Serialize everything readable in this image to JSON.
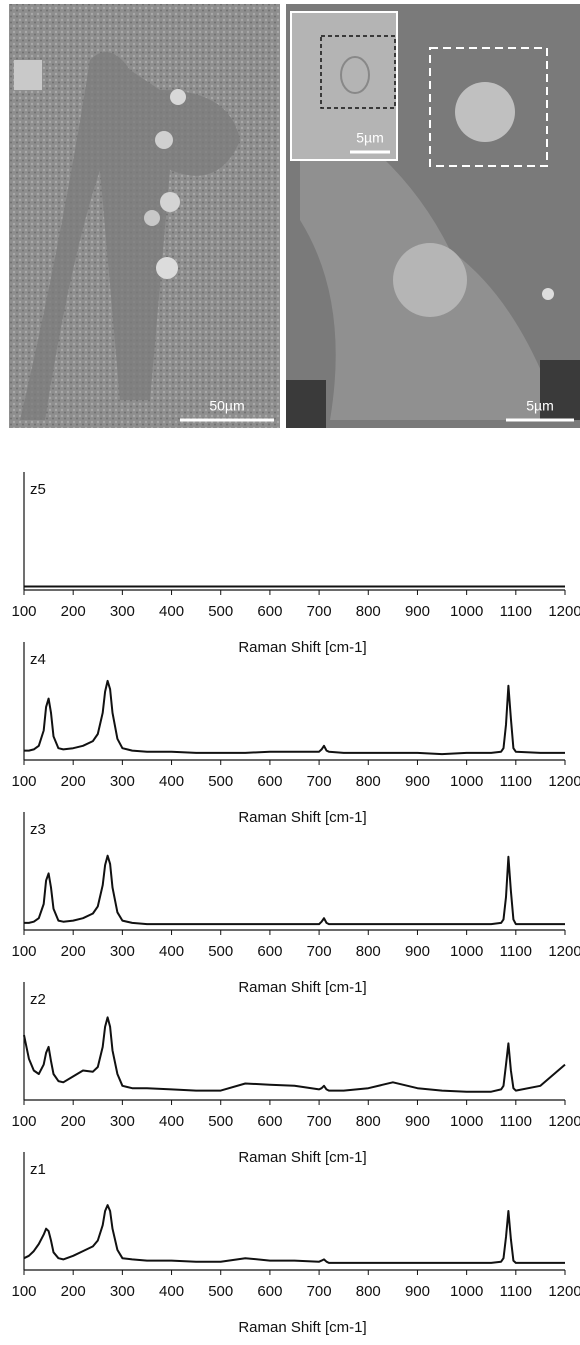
{
  "images": [
    {
      "scale_bar": "50µm"
    },
    {
      "scale_bar": "5µm",
      "inset_scale_bar": "5µm"
    }
  ],
  "chart_data": [
    {
      "type": "line",
      "label": "z5",
      "x_label": "Raman Shift [cm-1]",
      "color": "#111111",
      "xlim": [
        100,
        1200
      ],
      "ylim": [
        0,
        100
      ],
      "xticks": [
        100,
        200,
        300,
        400,
        500,
        600,
        700,
        800,
        900,
        1000,
        1100,
        1200
      ],
      "x": [
        100,
        110,
        120,
        130,
        140,
        145,
        150,
        155,
        160,
        170,
        180,
        200,
        220,
        240,
        250,
        260,
        265,
        270,
        275,
        280,
        290,
        300,
        320,
        350,
        400,
        450,
        500,
        550,
        600,
        650,
        700,
        705,
        710,
        715,
        720,
        750,
        800,
        850,
        900,
        950,
        1000,
        1050,
        1070,
        1075,
        1080,
        1085,
        1090,
        1095,
        1100,
        1150,
        1200
      ],
      "values": [
        3,
        3,
        3,
        3,
        3,
        3,
        3,
        3,
        3,
        3,
        3,
        3,
        3,
        3,
        3,
        3,
        3,
        3,
        3,
        3,
        3,
        3,
        3,
        3,
        3,
        3,
        3,
        3,
        3,
        3,
        3,
        3,
        3,
        3,
        3,
        3,
        3,
        3,
        3,
        3,
        3,
        3,
        3,
        3,
        3,
        3,
        3,
        3,
        3,
        3,
        3
      ]
    },
    {
      "type": "line",
      "label": "z4",
      "x_label": "Raman Shift [cm-1]",
      "color": "#111111",
      "xlim": [
        100,
        1200
      ],
      "ylim": [
        0,
        100
      ],
      "xticks": [
        100,
        200,
        300,
        400,
        500,
        600,
        700,
        800,
        900,
        1000,
        1100,
        1200
      ],
      "x": [
        100,
        110,
        120,
        130,
        140,
        145,
        150,
        155,
        160,
        170,
        180,
        200,
        220,
        240,
        250,
        260,
        265,
        270,
        275,
        280,
        290,
        300,
        320,
        350,
        400,
        450,
        500,
        550,
        600,
        650,
        700,
        705,
        710,
        715,
        720,
        750,
        800,
        850,
        900,
        950,
        1000,
        1050,
        1070,
        1075,
        1080,
        1085,
        1090,
        1095,
        1100,
        1150,
        1200
      ],
      "values": [
        8,
        8,
        9,
        12,
        25,
        45,
        52,
        40,
        20,
        10,
        9,
        10,
        12,
        16,
        22,
        40,
        58,
        67,
        60,
        40,
        18,
        10,
        8,
        7,
        7,
        6,
        6,
        6,
        7,
        7,
        7,
        9,
        12,
        8,
        7,
        6,
        6,
        6,
        6,
        5,
        6,
        6,
        7,
        10,
        30,
        63,
        35,
        10,
        7,
        6,
        6
      ]
    },
    {
      "type": "line",
      "label": "z3",
      "x_label": "Raman Shift [cm-1]",
      "color": "#111111",
      "xlim": [
        100,
        1200
      ],
      "ylim": [
        0,
        100
      ],
      "xticks": [
        100,
        200,
        300,
        400,
        500,
        600,
        700,
        800,
        900,
        1000,
        1100,
        1200
      ],
      "x": [
        100,
        110,
        120,
        130,
        140,
        145,
        150,
        155,
        160,
        170,
        180,
        200,
        220,
        240,
        250,
        260,
        265,
        270,
        275,
        280,
        290,
        300,
        320,
        350,
        400,
        450,
        500,
        550,
        600,
        650,
        700,
        705,
        710,
        715,
        720,
        750,
        800,
        850,
        900,
        950,
        1000,
        1050,
        1070,
        1075,
        1080,
        1085,
        1090,
        1095,
        1100,
        1150,
        1200
      ],
      "values": [
        6,
        6,
        7,
        10,
        22,
        42,
        48,
        36,
        18,
        8,
        7,
        8,
        10,
        14,
        20,
        38,
        55,
        63,
        56,
        36,
        15,
        8,
        6,
        5,
        5,
        5,
        5,
        5,
        5,
        5,
        5,
        7,
        10,
        6,
        5,
        5,
        5,
        5,
        5,
        5,
        5,
        5,
        6,
        9,
        28,
        62,
        33,
        9,
        5,
        5,
        5
      ]
    },
    {
      "type": "line",
      "label": "z2",
      "x_label": "Raman Shift [cm-1]",
      "color": "#111111",
      "xlim": [
        100,
        1200
      ],
      "ylim": [
        0,
        100
      ],
      "xticks": [
        100,
        200,
        300,
        400,
        500,
        600,
        700,
        800,
        900,
        1000,
        1100,
        1200
      ],
      "x": [
        100,
        110,
        120,
        130,
        140,
        145,
        150,
        155,
        160,
        170,
        180,
        200,
        220,
        240,
        250,
        260,
        265,
        270,
        275,
        280,
        290,
        300,
        320,
        350,
        400,
        450,
        500,
        550,
        600,
        650,
        700,
        705,
        710,
        715,
        720,
        750,
        800,
        850,
        900,
        950,
        1000,
        1050,
        1070,
        1075,
        1080,
        1085,
        1090,
        1095,
        1100,
        1150,
        1200
      ],
      "values": [
        55,
        35,
        25,
        22,
        30,
        40,
        45,
        33,
        22,
        16,
        15,
        20,
        25,
        24,
        28,
        45,
        62,
        70,
        62,
        42,
        22,
        12,
        10,
        10,
        9,
        8,
        8,
        14,
        13,
        12,
        9,
        10,
        12,
        9,
        8,
        8,
        10,
        15,
        10,
        8,
        7,
        7,
        9,
        12,
        30,
        48,
        25,
        10,
        8,
        12,
        30
      ]
    },
    {
      "type": "line",
      "label": "z1",
      "x_label": "Raman Shift [cm-1]",
      "color": "#111111",
      "xlim": [
        100,
        1200
      ],
      "ylim": [
        0,
        100
      ],
      "xticks": [
        100,
        200,
        300,
        400,
        500,
        600,
        700,
        800,
        900,
        1000,
        1100,
        1200
      ],
      "x": [
        100,
        110,
        120,
        130,
        140,
        145,
        150,
        155,
        160,
        170,
        180,
        200,
        220,
        240,
        250,
        260,
        265,
        270,
        275,
        280,
        290,
        300,
        320,
        350,
        400,
        450,
        500,
        550,
        600,
        650,
        700,
        705,
        710,
        715,
        720,
        750,
        800,
        850,
        900,
        950,
        1000,
        1050,
        1070,
        1075,
        1080,
        1085,
        1090,
        1095,
        1100,
        1150,
        1200
      ],
      "values": [
        10,
        12,
        16,
        22,
        30,
        35,
        33,
        25,
        15,
        10,
        9,
        12,
        16,
        20,
        25,
        38,
        50,
        55,
        50,
        35,
        17,
        10,
        9,
        8,
        8,
        7,
        7,
        10,
        8,
        8,
        7,
        8,
        9,
        7,
        6,
        6,
        6,
        6,
        6,
        6,
        6,
        6,
        7,
        10,
        28,
        50,
        26,
        8,
        6,
        6,
        6
      ]
    }
  ]
}
